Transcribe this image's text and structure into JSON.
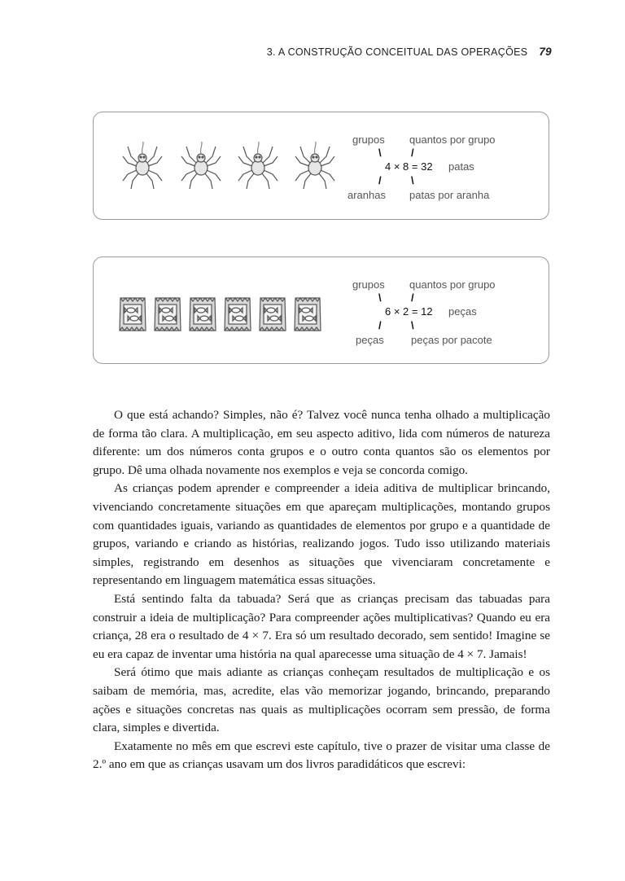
{
  "header": {
    "chapter": "3. A CONSTRUÇÃO CONCEITUAL DAS OPERAÇÕES",
    "page_number": "79"
  },
  "box1": {
    "icon": "spider-icon",
    "count": 4,
    "top_left": "grupos",
    "top_right": "quantos por grupo",
    "slash_left_top": "\\",
    "slash_right_top": "/",
    "equation": "4 × 8 = 32",
    "unit": "patas",
    "slash_left_bottom": "/",
    "slash_right_bottom": "\\",
    "bottom_left": "aranhas",
    "bottom_right": "patas por aranha"
  },
  "box2": {
    "icon": "candy-bag-icon",
    "count": 6,
    "top_left": "grupos",
    "top_right": "quantos por grupo",
    "slash_left_top": "\\",
    "slash_right_top": "/",
    "equation": "6 × 2 = 12",
    "unit": "peças",
    "slash_left_bottom": "/",
    "slash_right_bottom": "\\",
    "bottom_left": "peças",
    "bottom_right": "peças por pacote"
  },
  "paragraphs": [
    "O que está achando? Simples, não é? Talvez você nunca tenha olhado a multiplicação de forma tão clara. A multiplicação, em seu aspecto aditivo, lida com números de natureza diferente: um dos números conta grupos e o outro conta quantos são os elementos por grupo. Dê uma olhada novamente nos exemplos e veja se concorda comigo.",
    "As crianças podem aprender e compreender a ideia aditiva de multiplicar brincando, vivenciando concretamente situações em que apareçam multiplicações, montando grupos com quantidades iguais, variando as quantidades de elementos por grupo e a quantidade de grupos, variando e criando as histórias, realizando jogos. Tudo isso utilizando materiais simples, registrando em desenhos as situações que vivenciaram concretamente e representando em linguagem matemática essas situações.",
    "Está sentindo falta da tabuada? Será que as crianças precisam das tabuadas para construir a ideia de multiplicação? Para compreender ações multiplicativas? Quando eu era criança, 28 era o resultado de 4 × 7. Era só um resultado decorado, sem sentido! Imagine se eu era capaz de inventar uma história na qual aparecesse uma situação de 4 × 7. Jamais!",
    "Será ótimo que mais adiante as crianças conheçam resultados de multiplicação e os saibam de memória, mas, acredite, elas vão memorizar jogando, brincando, preparando ações e situações concretas nas quais as multiplicações ocorram sem pressão, de forma clara, simples e divertida.",
    "Exatamente no mês em que escrevi este capítulo, tive o prazer de visitar uma classe de 2.º ano em que as crianças usavam um dos livros paradidáticos que escrevi:"
  ]
}
